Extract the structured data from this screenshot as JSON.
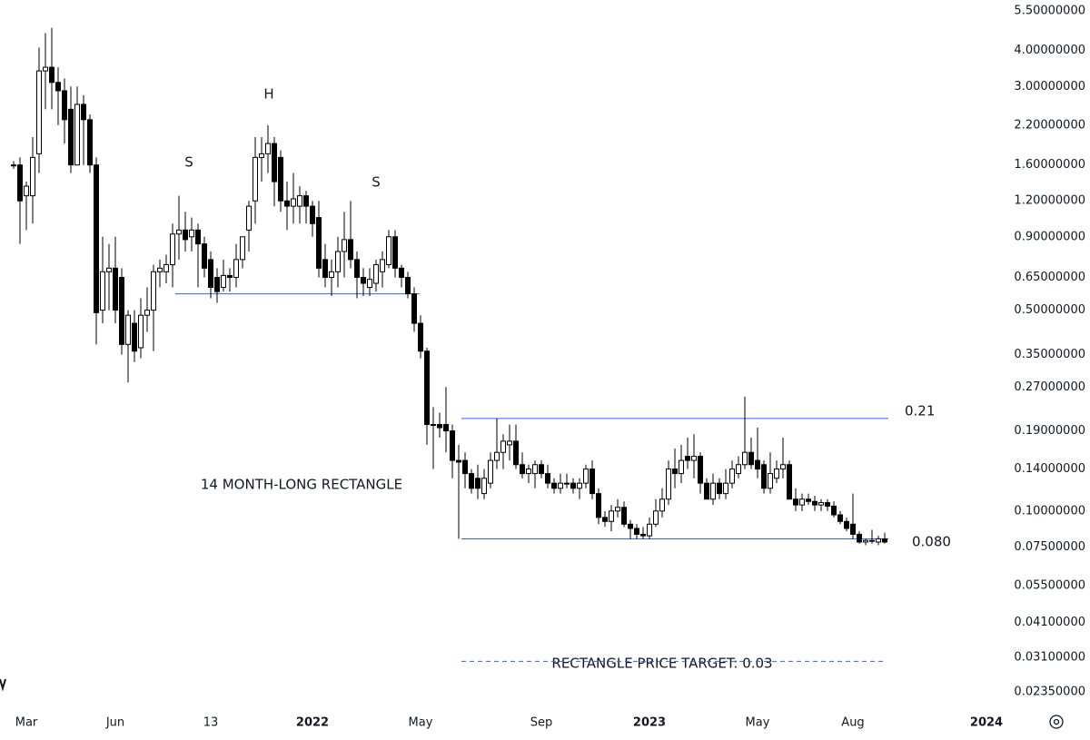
{
  "chart_data": {
    "type": "candlestick",
    "log_scale": true,
    "grid": false,
    "up_color": "#ffffff",
    "down_color": "#000000",
    "line_color": "#2962ff",
    "annotation_color": "#2962ff",
    "annotations": [
      "S",
      "H",
      "S",
      "14 MONTH-LONG RECTANGLE"
    ],
    "neckline": 0.57,
    "levels": [
      {
        "value": 0.21,
        "label": "0.21"
      },
      {
        "value": 0.08,
        "label": "0.080"
      },
      {
        "value": 0.03,
        "label": "RECTANGLE PRICE TARGET: 0.03"
      }
    ],
    "ylim": [
      0.0206,
      6.0
    ],
    "yticks": [
      {
        "value": 5.5,
        "label": "5.50000000"
      },
      {
        "value": 4.0,
        "label": "4.00000000"
      },
      {
        "value": 3.0,
        "label": "3.00000000"
      },
      {
        "value": 2.2,
        "label": "2.20000000"
      },
      {
        "value": 1.6,
        "label": "1.60000000"
      },
      {
        "value": 1.2,
        "label": "1.20000000"
      },
      {
        "value": 0.9,
        "label": "0.90000000"
      },
      {
        "value": 0.65,
        "label": "0.65000000"
      },
      {
        "value": 0.5,
        "label": "0.50000000"
      },
      {
        "value": 0.35,
        "label": "0.35000000"
      },
      {
        "value": 0.27,
        "label": "0.27000000"
      },
      {
        "value": 0.19,
        "label": "0.19000000"
      },
      {
        "value": 0.14,
        "label": "0.14000000"
      },
      {
        "value": 0.1,
        "label": "0.10000000"
      },
      {
        "value": 0.075,
        "label": "0.07500000"
      },
      {
        "value": 0.055,
        "label": "0.05500000"
      },
      {
        "value": 0.041,
        "label": "0.04100000"
      },
      {
        "value": 0.031,
        "label": "0.03100000"
      },
      {
        "value": 0.0235,
        "label": "0.02350000"
      }
    ],
    "categories": [
      null,
      null,
      "Mar",
      null,
      null,
      null,
      null,
      null,
      null,
      null,
      null,
      null,
      null,
      null,
      null,
      null,
      "Jun",
      null,
      null,
      null,
      null,
      null,
      null,
      null,
      null,
      null,
      null,
      null,
      null,
      null,
      null,
      "13",
      null,
      null,
      null,
      null,
      null,
      null,
      null,
      null,
      null,
      null,
      null,
      null,
      null,
      null,
      null,
      "2022",
      null,
      null,
      null,
      null,
      null,
      null,
      null,
      null,
      null,
      null,
      null,
      null,
      null,
      null,
      null,
      null,
      "May",
      null,
      null,
      null,
      null,
      null,
      null,
      null,
      null,
      null,
      null,
      null,
      null,
      null,
      null,
      null,
      null,
      null,
      null,
      "Sep",
      null,
      null,
      null,
      null,
      null,
      null,
      null,
      null,
      null,
      null,
      null,
      null,
      null,
      null,
      null,
      null,
      "2023",
      null,
      null,
      null,
      null,
      null,
      null,
      null,
      null,
      null,
      null,
      null,
      null,
      null,
      null,
      null,
      null,
      "May",
      null,
      null,
      null,
      null,
      null,
      null,
      null,
      null,
      null,
      null,
      null,
      null,
      null,
      null,
      "Aug",
      null,
      null,
      null,
      null,
      null,
      null,
      null,
      null,
      null,
      null,
      null,
      null,
      null,
      null,
      null,
      null,
      null,
      null,
      null,
      null,
      "2024",
      null
    ],
    "open": [
      1.6,
      1.6,
      1.25,
      1.25,
      1.75,
      3.4,
      3.5,
      3.1,
      2.9,
      2.5,
      1.6,
      2.6,
      2.3,
      1.6,
      0.5,
      0.68,
      0.7,
      0.65,
      0.38,
      0.45,
      0.37,
      0.48,
      0.5,
      0.68,
      0.68,
      0.72,
      0.92,
      0.95,
      0.9,
      0.95,
      0.85,
      0.75,
      0.65,
      0.6,
      0.66,
      0.65,
      0.75,
      0.95,
      1.2,
      1.7,
      1.75,
      1.9,
      1.7,
      1.2,
      1.15,
      1.15,
      1.25,
      1.15,
      1.05,
      0.75,
      0.65,
      0.68,
      0.8,
      0.88,
      0.75,
      0.65,
      0.6,
      0.62,
      0.68,
      0.72,
      0.9,
      0.7,
      0.65,
      0.57,
      0.45,
      0.36,
      0.2,
      0.2,
      0.2,
      0.19,
      0.15,
      0.15,
      0.135,
      0.13,
      0.115,
      0.125,
      0.15,
      0.16,
      0.17,
      0.175,
      0.145,
      0.135,
      0.135,
      0.145,
      0.135,
      0.125,
      0.12,
      0.125,
      0.125,
      0.12,
      0.125,
      0.14,
      0.115,
      0.095,
      0.092,
      0.1,
      0.103,
      0.09,
      0.087,
      0.083,
      0.082,
      0.09,
      0.1,
      0.11,
      0.14,
      0.135,
      0.155,
      0.15,
      0.155,
      0.125,
      0.11,
      0.125,
      0.115,
      0.125,
      0.135,
      0.145,
      0.16,
      0.15,
      0.145,
      0.12,
      0.13,
      0.14,
      0.145,
      0.11,
      0.105,
      0.11,
      0.108,
      0.105,
      0.107,
      0.104,
      0.097,
      0.092,
      0.09,
      0.083,
      0.078,
      0.079,
      0.078,
      0.08,
      null,
      null,
      null,
      null,
      null,
      null,
      null,
      null,
      null,
      null,
      null,
      null,
      null,
      null,
      null,
      null,
      null
    ],
    "high": [
      1.65,
      1.7,
      1.4,
      2.0,
      4.1,
      4.6,
      4.8,
      3.5,
      3.2,
      3.0,
      3.0,
      2.8,
      2.4,
      1.7,
      0.9,
      0.85,
      0.9,
      0.7,
      0.5,
      0.5,
      0.55,
      0.6,
      0.72,
      0.75,
      0.78,
      1.0,
      1.25,
      1.1,
      1.05,
      1.0,
      0.9,
      0.8,
      0.7,
      0.75,
      0.7,
      0.85,
      0.9,
      1.2,
      2.0,
      2.0,
      2.2,
      2.0,
      1.8,
      1.4,
      1.5,
      1.35,
      1.3,
      1.2,
      1.2,
      0.85,
      0.75,
      0.9,
      1.1,
      1.2,
      0.8,
      0.7,
      0.7,
      0.75,
      0.8,
      0.95,
      0.95,
      0.72,
      0.68,
      0.6,
      0.48,
      0.37,
      0.23,
      0.22,
      0.27,
      0.2,
      0.17,
      0.16,
      0.14,
      0.145,
      0.14,
      0.16,
      0.21,
      0.185,
      0.2,
      0.2,
      0.16,
      0.145,
      0.15,
      0.15,
      0.145,
      0.13,
      0.135,
      0.135,
      0.13,
      0.13,
      0.145,
      0.15,
      0.12,
      0.1,
      0.105,
      0.11,
      0.108,
      0.093,
      0.09,
      0.088,
      0.095,
      0.11,
      0.12,
      0.15,
      0.165,
      0.17,
      0.18,
      0.185,
      0.16,
      0.13,
      0.135,
      0.13,
      0.14,
      0.15,
      0.155,
      0.25,
      0.18,
      0.195,
      0.15,
      0.16,
      0.15,
      0.18,
      0.15,
      0.12,
      0.115,
      0.115,
      0.113,
      0.11,
      0.11,
      0.108,
      0.1,
      0.095,
      0.115,
      0.085,
      0.08,
      0.086,
      0.082,
      0.084,
      null,
      null,
      null,
      null,
      null,
      null,
      null,
      null,
      null,
      null,
      null,
      null,
      null,
      null,
      null,
      null,
      null
    ],
    "low": [
      1.55,
      0.85,
      0.95,
      1.0,
      1.5,
      2.5,
      2.5,
      2.2,
      1.9,
      1.5,
      1.6,
      1.6,
      1.5,
      0.38,
      0.45,
      0.5,
      0.45,
      0.35,
      0.28,
      0.33,
      0.34,
      0.42,
      0.36,
      0.6,
      0.62,
      0.6,
      0.75,
      0.8,
      0.8,
      0.6,
      0.65,
      0.55,
      0.53,
      0.58,
      0.58,
      0.6,
      0.7,
      0.8,
      1.0,
      1.4,
      1.5,
      1.15,
      1.1,
      0.95,
      1.0,
      1.0,
      1.0,
      0.9,
      0.65,
      0.6,
      0.56,
      0.6,
      0.65,
      0.7,
      0.55,
      0.56,
      0.56,
      0.58,
      0.6,
      0.7,
      0.65,
      0.6,
      0.55,
      0.42,
      0.34,
      0.17,
      0.14,
      0.18,
      0.16,
      0.13,
      0.08,
      0.12,
      0.115,
      0.11,
      0.11,
      0.12,
      0.14,
      0.14,
      0.15,
      0.14,
      0.13,
      0.125,
      0.12,
      0.13,
      0.12,
      0.115,
      0.115,
      0.12,
      0.115,
      0.11,
      0.12,
      0.11,
      0.09,
      0.088,
      0.085,
      0.095,
      0.088,
      0.08,
      0.08,
      0.08,
      0.08,
      0.088,
      0.095,
      0.105,
      0.12,
      0.125,
      0.14,
      0.13,
      0.115,
      0.11,
      0.105,
      0.11,
      0.11,
      0.12,
      0.13,
      0.14,
      0.14,
      0.13,
      0.115,
      0.115,
      0.125,
      0.13,
      0.11,
      0.1,
      0.1,
      0.105,
      0.1,
      0.1,
      0.1,
      0.095,
      0.09,
      0.085,
      0.08,
      0.077,
      0.076,
      0.077,
      0.076,
      0.077,
      null,
      null,
      null,
      null,
      null,
      null,
      null,
      null,
      null,
      null,
      null,
      null,
      null,
      null,
      null,
      null,
      null
    ],
    "close": [
      1.6,
      1.2,
      1.35,
      1.7,
      3.4,
      3.5,
      3.1,
      2.9,
      2.3,
      1.6,
      2.6,
      2.3,
      1.6,
      0.49,
      0.68,
      0.7,
      0.5,
      0.38,
      0.48,
      0.36,
      0.48,
      0.5,
      0.68,
      0.7,
      0.72,
      0.92,
      0.95,
      0.88,
      0.95,
      0.85,
      0.7,
      0.6,
      0.58,
      0.66,
      0.65,
      0.75,
      0.9,
      1.15,
      1.7,
      1.75,
      1.9,
      1.4,
      1.2,
      1.15,
      1.22,
      1.25,
      1.15,
      1.0,
      0.7,
      0.65,
      0.68,
      0.8,
      0.88,
      0.75,
      0.65,
      0.62,
      0.64,
      0.72,
      0.75,
      0.9,
      0.7,
      0.65,
      0.57,
      0.45,
      0.36,
      0.2,
      0.2,
      0.195,
      0.19,
      0.15,
      0.148,
      0.135,
      0.12,
      0.12,
      0.13,
      0.15,
      0.16,
      0.175,
      0.175,
      0.145,
      0.135,
      0.14,
      0.145,
      0.135,
      0.125,
      0.12,
      0.125,
      0.125,
      0.12,
      0.125,
      0.14,
      0.115,
      0.095,
      0.092,
      0.1,
      0.103,
      0.09,
      0.087,
      0.083,
      0.082,
      0.09,
      0.1,
      0.11,
      0.14,
      0.135,
      0.15,
      0.15,
      0.155,
      0.125,
      0.11,
      0.125,
      0.115,
      0.125,
      0.14,
      0.145,
      0.16,
      0.145,
      0.14,
      0.12,
      0.135,
      0.14,
      0.145,
      0.11,
      0.105,
      0.11,
      0.108,
      0.105,
      0.107,
      0.104,
      0.097,
      0.092,
      0.087,
      0.083,
      0.078,
      0.079,
      0.079,
      0.08,
      0.078,
      null,
      null,
      null,
      null,
      null,
      null,
      null,
      null,
      null,
      null,
      null,
      null,
      null,
      null,
      null,
      null,
      null
    ]
  }
}
